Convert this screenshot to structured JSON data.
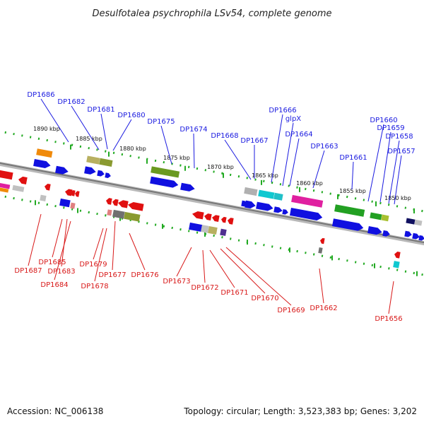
{
  "title": "Desulfotalea psychrophila LSv54, complete genome",
  "footer": {
    "accession": "Accession: NC_006138",
    "summary": "Topology: circular; Length: 3,523,383 bp; Genes: 3,202"
  },
  "scale_labels": [
    "1890 kbp",
    "1885 kbp",
    "1880 kbp",
    "1875 kbp",
    "1870 kbp",
    "1865 kbp",
    "1860 kbp",
    "1855 kbp",
    "1850 kbp"
  ],
  "top_labels": [
    "DP1686",
    "DP1682",
    "DP1681",
    "DP1680",
    "DP1675",
    "DP1674",
    "DP1668",
    "DP1667",
    "DP1666",
    "glpX",
    "DP1664",
    "DP1663",
    "DP1661",
    "DP1660",
    "DP1659",
    "DP1658",
    "DP1657"
  ],
  "bottom_labels": [
    "DP1687",
    "DP1685",
    "DP1683",
    "DP1684",
    "DP1679",
    "DP1678",
    "DP1677",
    "DP1676",
    "DP1673",
    "DP1672",
    "DP1671",
    "DP1670",
    "DP1669",
    "DP1662",
    "DP1656"
  ],
  "colors": {
    "backbone": "#8a8a8a",
    "scale_dots": "#22aa22",
    "forward_strand": "#1010e0",
    "reverse_strand": "#e01010",
    "top_label": "#1a1ae0",
    "bottom_label": "#d81818"
  }
}
